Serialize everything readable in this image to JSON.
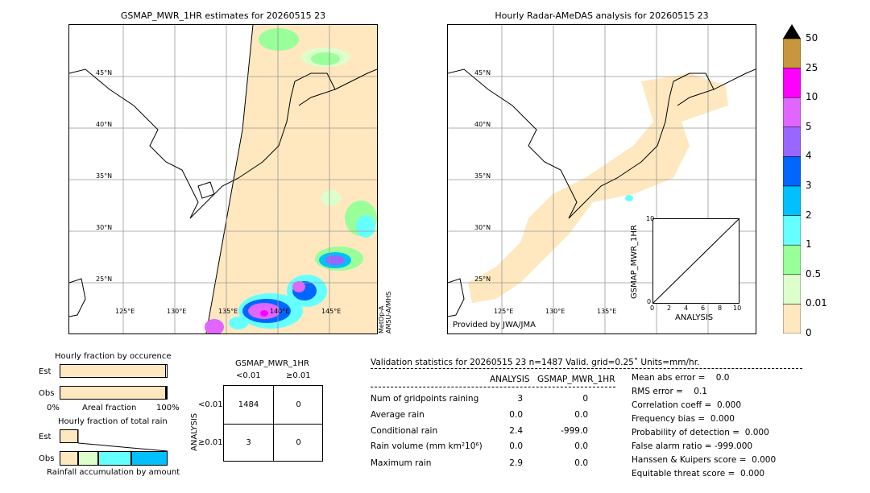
{
  "left_map": {
    "title": "GSMAP_MWR_1HR estimates for 20260515 23",
    "lat_labels": [
      "45°N",
      "40°N",
      "35°N",
      "30°N",
      "25°N"
    ],
    "lon_labels": [
      "125°E",
      "130°E",
      "135°E",
      "140°E",
      "145°E"
    ],
    "sensor_label": "MetOp-A\nAMSU-A/MHS"
  },
  "right_map": {
    "title": "Hourly Radar-AMeDAS analysis for 20260515 23",
    "lat_labels": [
      "45°N",
      "40°N",
      "35°N",
      "30°N",
      "25°N"
    ],
    "lon_labels": [
      "125°E",
      "130°E",
      "135°E"
    ],
    "provider": "Provided by JWA/JMA"
  },
  "colorbar": {
    "labels": [
      "50",
      "25",
      "10",
      "5",
      "4",
      "3",
      "2",
      "1",
      "0.5",
      "0.01",
      "0"
    ],
    "colors": [
      "#c8963c",
      "#ff00ff",
      "#e066ff",
      "#9966ff",
      "#0066ff",
      "#00c0ff",
      "#66ffff",
      "#99ff99",
      "#ddffcc",
      "#ffe8bf"
    ]
  },
  "scatter_inset": {
    "ylabel": "GSMAP_MWR_1HR",
    "xlabel": "ANALYSIS",
    "ticks": [
      "0",
      "2",
      "4",
      "6",
      "8",
      "10"
    ]
  },
  "fraction_occurrence": {
    "title": "Hourly fraction by occurence",
    "rows": [
      "Est",
      "Obs"
    ],
    "axis_left": "0%",
    "axis_mid": "Areal fraction",
    "axis_right": "100%",
    "est_fraction": 0.985,
    "obs_fraction": 0.985
  },
  "fraction_total": {
    "title": "Hourly fraction of total rain",
    "rows": [
      "Est",
      "Obs"
    ],
    "caption": "Rainfall accumulation by amount"
  },
  "contingency": {
    "title": "GSMAP_MWR_1HR",
    "col_headers": [
      "<0.01",
      "≥0.01"
    ],
    "row_axis": "ANALYSIS",
    "row_headers": [
      "<0.01",
      "≥0.01"
    ],
    "cells": [
      [
        "1484",
        "0"
      ],
      [
        "3",
        "0"
      ]
    ]
  },
  "validation": {
    "header": "Validation statistics for 20260515 23  n=1487 Valid. grid=0.25˚ Units=mm/hr.",
    "col_analysis": "ANALYSIS",
    "col_gsmap": "GSMAP_MWR_1HR",
    "rows": [
      {
        "label": "Num of gridpoints raining",
        "a": "3",
        "g": "0"
      },
      {
        "label": "Average rain",
        "a": "0.0",
        "g": "0.0"
      },
      {
        "label": "Conditional rain",
        "a": "2.4",
        "g": "-999.0"
      },
      {
        "label": "Rain volume (mm km²10⁶)",
        "a": "0.0",
        "g": "0.0"
      },
      {
        "label": "Maximum rain",
        "a": "2.9",
        "g": "0.0"
      }
    ],
    "scores": [
      "Mean abs error =    0.0",
      "RMS error =    0.1",
      "Correlation coeff =  0.000",
      "Frequency bias =  0.000",
      "Probability of detection =  0.000",
      "False alarm ratio = -999.000",
      "Hanssen & Kuipers score =  0.000",
      "Equitable threat score =  0.000"
    ]
  },
  "chart_data": {
    "type": "table",
    "contingency_table": {
      "analysis_lt_0.01": {
        "gsmap_lt_0.01": 1484,
        "gsmap_ge_0.01": 0
      },
      "analysis_ge_0.01": {
        "gsmap_lt_0.01": 3,
        "gsmap_ge_0.01": 0
      }
    },
    "n": 1487
  }
}
